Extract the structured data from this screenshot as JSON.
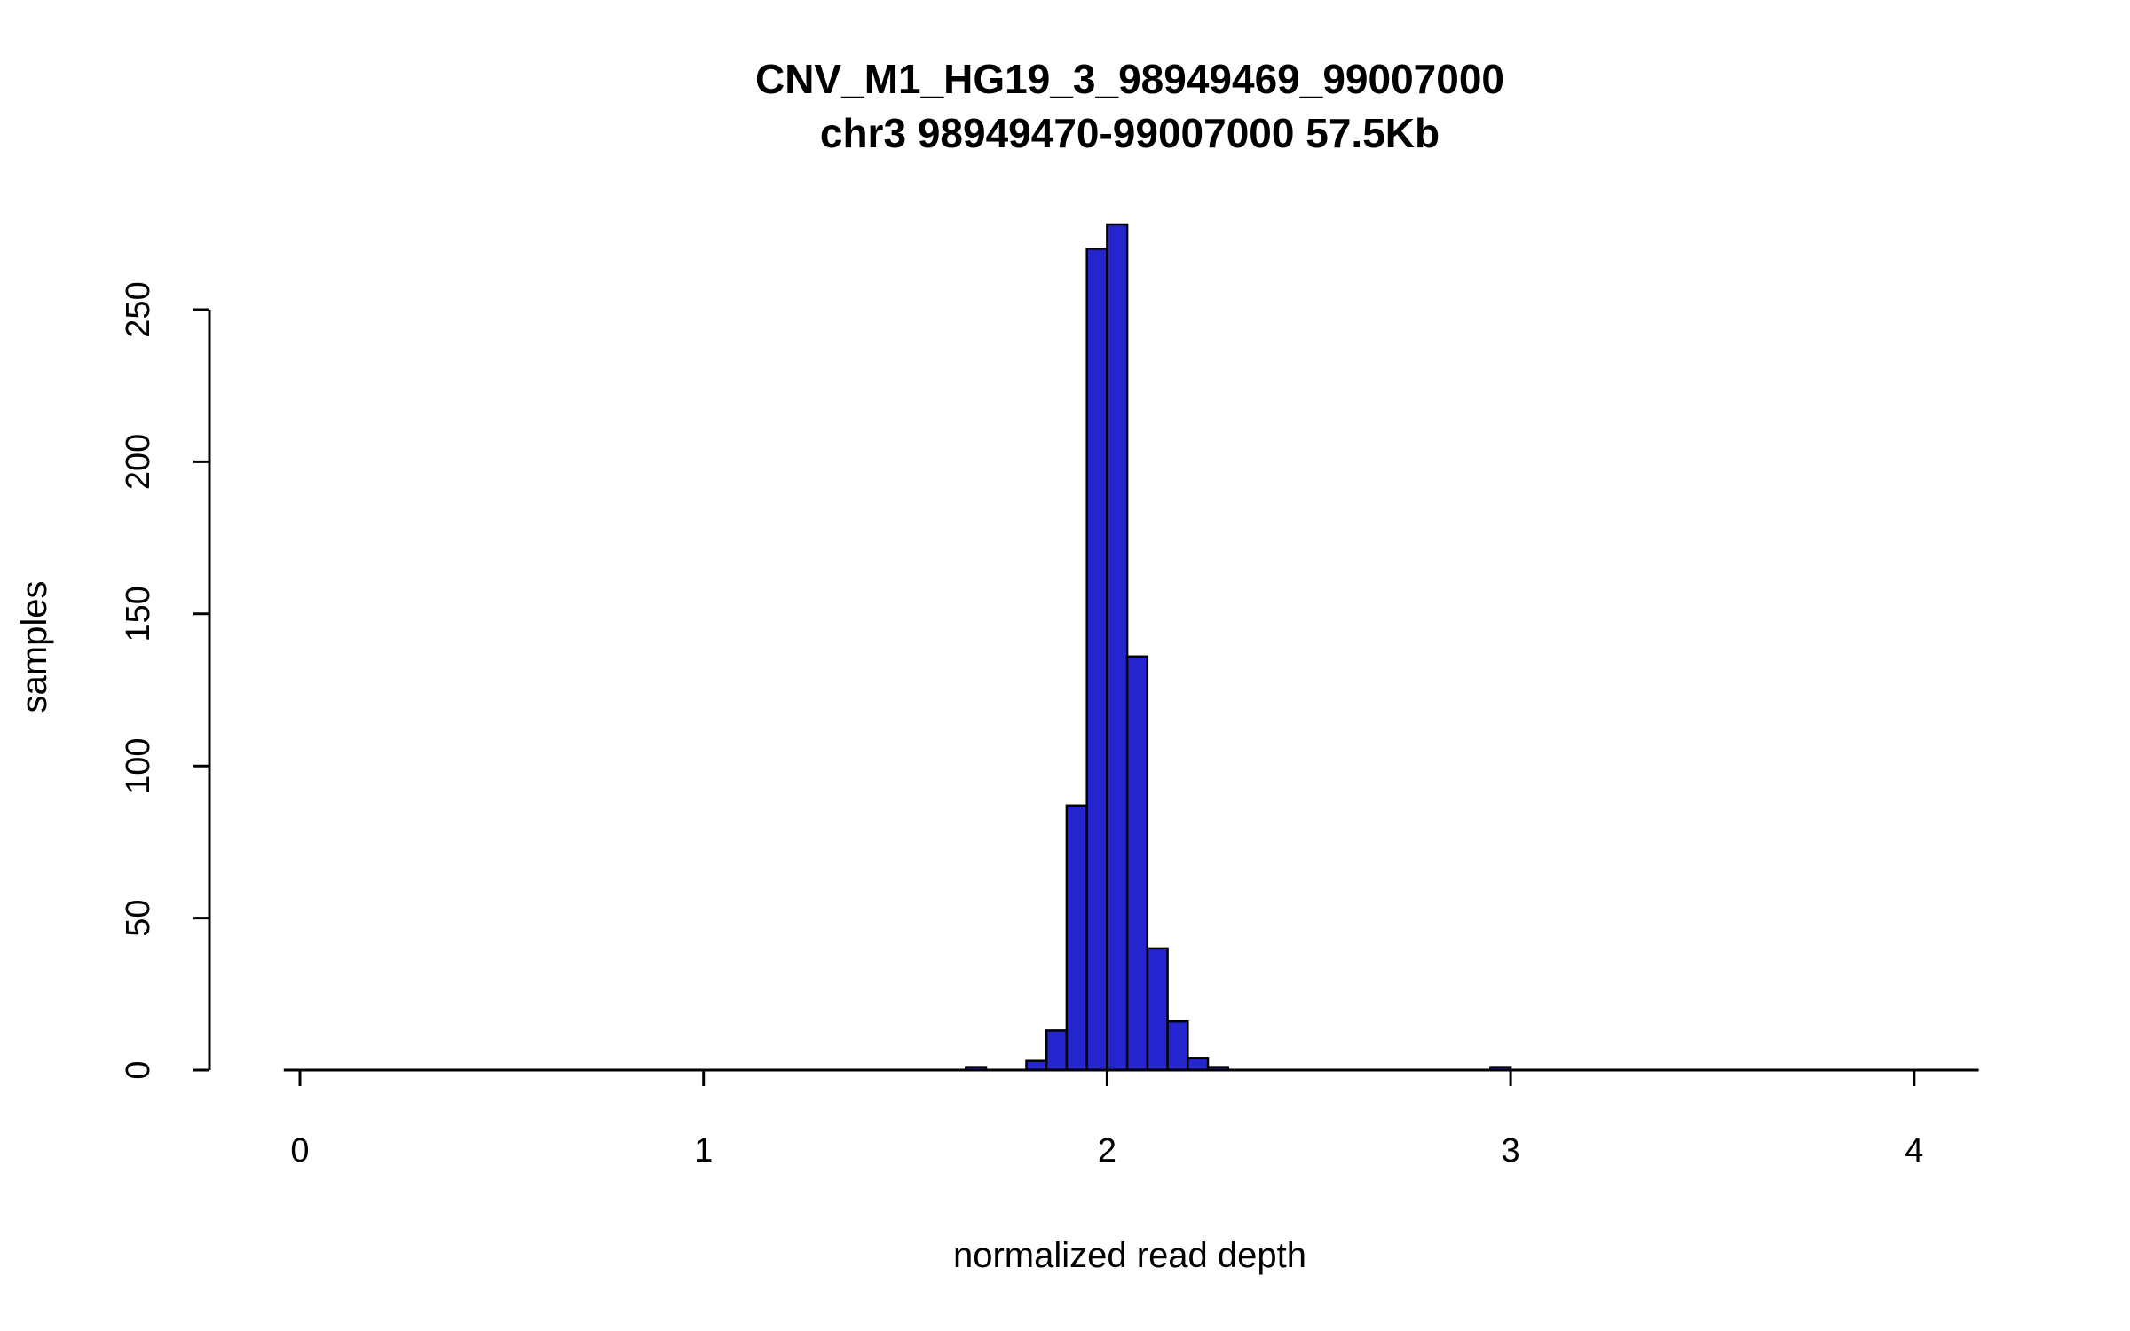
{
  "title": {
    "line1": "CNV_M1_HG19_3_98949469_99007000",
    "line2": "chr3 98949470-99007000 57.5Kb"
  },
  "chart_data": {
    "type": "bar",
    "subtype": "histogram",
    "title": "CNV_M1_HG19_3_98949469_99007000",
    "subtitle": "chr3 98949470-99007000 57.5Kb",
    "xlabel": "normalized read depth",
    "ylabel": "samples",
    "x_ticks": [
      0,
      1,
      2,
      3,
      4
    ],
    "y_ticks": [
      0,
      50,
      100,
      150,
      200,
      250
    ],
    "xlim": [
      -0.04,
      4.16
    ],
    "ylim": [
      0,
      280
    ],
    "bin_width": 0.05,
    "bins": [
      {
        "x0": 1.65,
        "count": 1
      },
      {
        "x0": 1.8,
        "count": 3
      },
      {
        "x0": 1.85,
        "count": 13
      },
      {
        "x0": 1.9,
        "count": 87
      },
      {
        "x0": 1.95,
        "count": 270
      },
      {
        "x0": 2.0,
        "count": 278
      },
      {
        "x0": 2.05,
        "count": 136
      },
      {
        "x0": 2.1,
        "count": 40
      },
      {
        "x0": 2.15,
        "count": 16
      },
      {
        "x0": 2.2,
        "count": 4
      },
      {
        "x0": 2.25,
        "count": 1
      },
      {
        "x0": 2.95,
        "count": 1
      }
    ],
    "grid": false,
    "legend": "none",
    "bar_fill": "#2525cf",
    "bar_stroke": "#000000",
    "axis_color": "#000000",
    "background": "#ffffff"
  }
}
